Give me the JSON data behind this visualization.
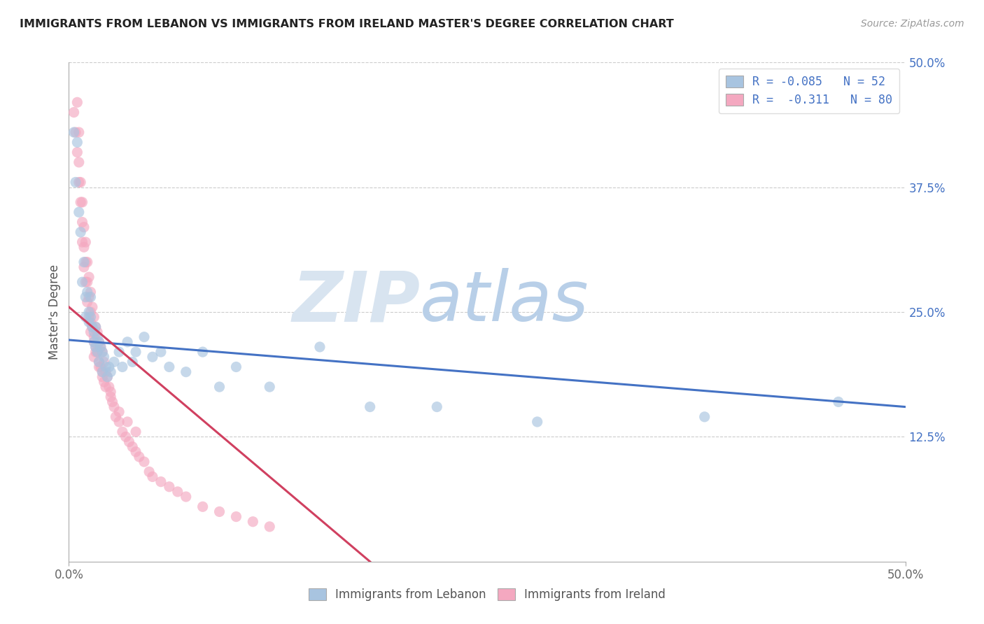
{
  "title": "IMMIGRANTS FROM LEBANON VS IMMIGRANTS FROM IRELAND MASTER'S DEGREE CORRELATION CHART",
  "source_text": "Source: ZipAtlas.com",
  "ylabel": "Master's Degree",
  "x_min": 0.0,
  "x_max": 0.5,
  "y_min": 0.0,
  "y_max": 0.5,
  "y_ticks": [
    0.125,
    0.25,
    0.375,
    0.5
  ],
  "y_tick_labels": [
    "12.5%",
    "25.0%",
    "37.5%",
    "50.0%"
  ],
  "color_lebanon": "#a8c4e0",
  "color_ireland": "#f4a8c0",
  "line_color_lebanon": "#4472c4",
  "line_color_ireland": "#d04060",
  "legend_text1": "Immigrants from Lebanon",
  "legend_text2": "Immigrants from Ireland",
  "watermark_zip_color": "#d8e4f0",
  "watermark_atlas_color": "#b8cfe8",
  "lebanon_line_x0": 0.0,
  "lebanon_line_y0": 0.222,
  "lebanon_line_x1": 0.5,
  "lebanon_line_y1": 0.155,
  "ireland_line_x0": 0.0,
  "ireland_line_y0": 0.255,
  "ireland_line_x1": 0.18,
  "ireland_line_y1": 0.0,
  "lebanon_x": [
    0.003,
    0.004,
    0.005,
    0.006,
    0.007,
    0.008,
    0.009,
    0.01,
    0.01,
    0.011,
    0.012,
    0.012,
    0.013,
    0.013,
    0.014,
    0.015,
    0.015,
    0.016,
    0.016,
    0.017,
    0.017,
    0.018,
    0.018,
    0.019,
    0.02,
    0.02,
    0.021,
    0.022,
    0.023,
    0.024,
    0.025,
    0.027,
    0.03,
    0.032,
    0.035,
    0.038,
    0.04,
    0.045,
    0.05,
    0.055,
    0.06,
    0.07,
    0.08,
    0.09,
    0.1,
    0.12,
    0.15,
    0.18,
    0.22,
    0.28,
    0.38,
    0.46
  ],
  "lebanon_y": [
    0.43,
    0.38,
    0.42,
    0.35,
    0.33,
    0.28,
    0.3,
    0.265,
    0.245,
    0.27,
    0.25,
    0.24,
    0.265,
    0.245,
    0.235,
    0.23,
    0.22,
    0.235,
    0.215,
    0.225,
    0.21,
    0.22,
    0.2,
    0.215,
    0.21,
    0.19,
    0.205,
    0.195,
    0.185,
    0.195,
    0.19,
    0.2,
    0.21,
    0.195,
    0.22,
    0.2,
    0.21,
    0.225,
    0.205,
    0.21,
    0.195,
    0.19,
    0.21,
    0.175,
    0.195,
    0.175,
    0.215,
    0.155,
    0.155,
    0.14,
    0.145,
    0.16
  ],
  "ireland_x": [
    0.003,
    0.004,
    0.005,
    0.005,
    0.006,
    0.006,
    0.006,
    0.007,
    0.007,
    0.008,
    0.008,
    0.008,
    0.009,
    0.009,
    0.009,
    0.01,
    0.01,
    0.01,
    0.011,
    0.011,
    0.011,
    0.012,
    0.012,
    0.012,
    0.013,
    0.013,
    0.013,
    0.014,
    0.014,
    0.015,
    0.015,
    0.015,
    0.016,
    0.016,
    0.017,
    0.017,
    0.018,
    0.018,
    0.019,
    0.019,
    0.02,
    0.02,
    0.021,
    0.021,
    0.022,
    0.023,
    0.024,
    0.025,
    0.026,
    0.027,
    0.028,
    0.03,
    0.032,
    0.034,
    0.036,
    0.038,
    0.04,
    0.042,
    0.045,
    0.048,
    0.05,
    0.055,
    0.06,
    0.065,
    0.07,
    0.08,
    0.09,
    0.1,
    0.11,
    0.12,
    0.013,
    0.015,
    0.016,
    0.018,
    0.02,
    0.022,
    0.025,
    0.03,
    0.035,
    0.04
  ],
  "ireland_y": [
    0.45,
    0.43,
    0.46,
    0.41,
    0.43,
    0.4,
    0.38,
    0.38,
    0.36,
    0.36,
    0.34,
    0.32,
    0.335,
    0.315,
    0.295,
    0.32,
    0.3,
    0.28,
    0.3,
    0.28,
    0.26,
    0.285,
    0.265,
    0.245,
    0.27,
    0.25,
    0.23,
    0.255,
    0.235,
    0.245,
    0.225,
    0.205,
    0.235,
    0.215,
    0.23,
    0.21,
    0.22,
    0.2,
    0.215,
    0.195,
    0.21,
    0.19,
    0.2,
    0.18,
    0.19,
    0.185,
    0.175,
    0.17,
    0.16,
    0.155,
    0.145,
    0.14,
    0.13,
    0.125,
    0.12,
    0.115,
    0.11,
    0.105,
    0.1,
    0.09,
    0.085,
    0.08,
    0.075,
    0.07,
    0.065,
    0.055,
    0.05,
    0.045,
    0.04,
    0.035,
    0.24,
    0.22,
    0.21,
    0.195,
    0.185,
    0.175,
    0.165,
    0.15,
    0.14,
    0.13
  ]
}
